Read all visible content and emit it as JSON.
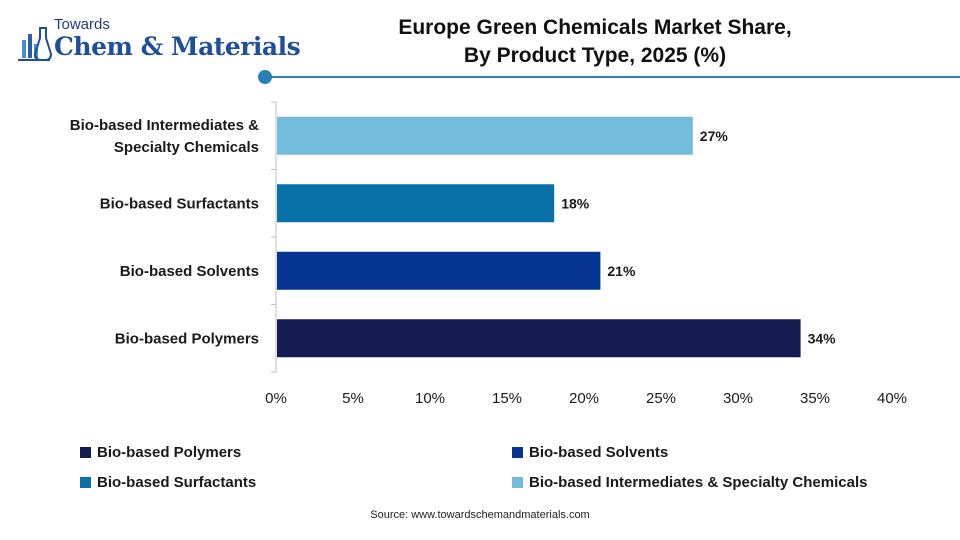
{
  "logo": {
    "line1": "Towards",
    "line2": "Chem & Materials"
  },
  "title_line1": "Europe Green Chemicals Market Share,",
  "title_line2": "By Product Type, 2025 (%)",
  "source": "Source: www.towardschemandmaterials.com",
  "colors": {
    "accent": "#2a7fb5",
    "Bio-based Polymers": "#141c52",
    "Bio-based Solvents": "#053591",
    "Bio-based Surfactants": "#0872a8",
    "Bio-based Intermediates & Specialty Chemicals": "#73bcdc"
  },
  "chart_data": {
    "type": "bar",
    "orientation": "horizontal",
    "title": "Europe Green Chemicals Market Share, By Product Type, 2025 (%)",
    "categories": [
      "Bio-based Intermediates & Specialty Chemicals",
      "Bio-based Surfactants",
      "Bio-based Solvents",
      "Bio-based Polymers"
    ],
    "category_label_lines": [
      [
        "Bio-based Intermediates &",
        "Specialty Chemicals"
      ],
      [
        "Bio-based Surfactants"
      ],
      [
        "Bio-based Solvents"
      ],
      [
        "Bio-based Polymers"
      ]
    ],
    "values": [
      27,
      18,
      21,
      34
    ],
    "value_labels": [
      "27%",
      "18%",
      "21%",
      "34%"
    ],
    "xlim": [
      0,
      40
    ],
    "xticks": [
      0,
      5,
      10,
      15,
      20,
      25,
      30,
      35,
      40
    ],
    "xtick_labels": [
      "0%",
      "5%",
      "10%",
      "15%",
      "20%",
      "25%",
      "30%",
      "35%",
      "40%"
    ],
    "grid": false,
    "legend_position": "bottom",
    "legend": [
      "Bio-based Polymers",
      "Bio-based Solvents",
      "Bio-based Surfactants",
      "Bio-based Intermediates & Specialty Chemicals"
    ]
  }
}
